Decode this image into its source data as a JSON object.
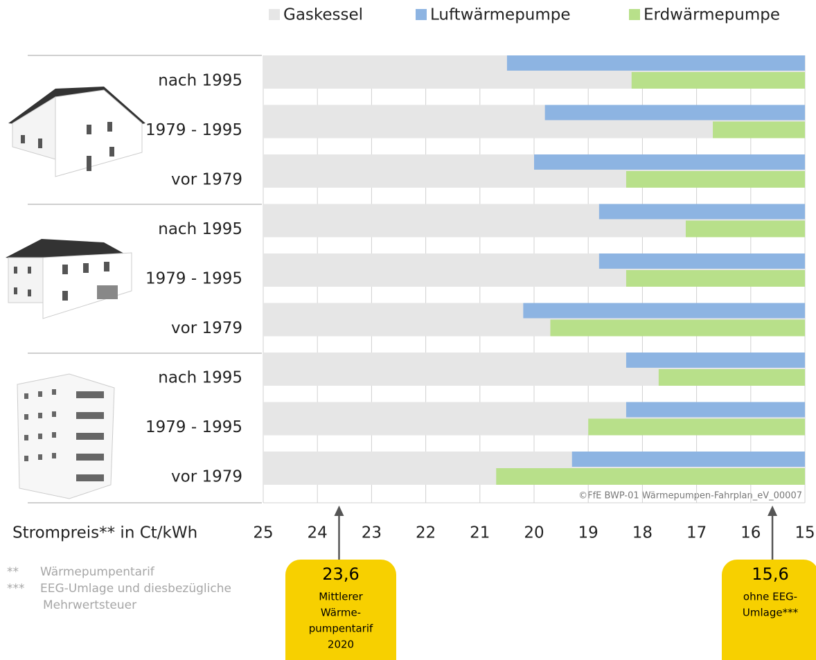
{
  "chart_data": {
    "type": "bar",
    "orientation": "horizontal",
    "categories": [
      "nach 1995",
      "1979 - 1995",
      "vor 1979",
      "nach 1995",
      "1979 - 1995",
      "vor 1979",
      "nach 1995",
      "1979 - 1995",
      "vor 1979"
    ],
    "series": [
      {
        "name": "Gaskessel",
        "color": "#e6e6e6",
        "values": [
          25,
          25,
          25,
          25,
          25,
          25,
          25,
          25,
          25
        ]
      },
      {
        "name": "Luftwärmepumpe",
        "color": "#8db4e2",
        "values": [
          20.5,
          19.8,
          20.0,
          18.8,
          18.8,
          20.2,
          18.3,
          18.3,
          19.3
        ]
      },
      {
        "name": "Erdwärmepumpe",
        "color": "#b8e08a",
        "values": [
          18.2,
          16.7,
          18.3,
          17.2,
          18.3,
          19.7,
          17.7,
          19.0,
          20.7
        ]
      }
    ],
    "xlabel": "Strompreis** in Ct/kWh",
    "xlim": [
      25,
      15
    ],
    "xticks": [
      25,
      24,
      23,
      22,
      21,
      20,
      19,
      18,
      17,
      16,
      15
    ],
    "grid": true,
    "legend": "top",
    "credit": "©FfE BWP-01 Wärmepumpen-Fahrplan_eV_00007",
    "annotations": [
      {
        "value": 23.6,
        "label": "23,6",
        "text": [
          "Mittlerer",
          "Wärme-",
          "pumpentarif",
          "2020"
        ]
      },
      {
        "value": 15.6,
        "label": "15,6",
        "text": [
          "ohne EEG-",
          "Umlage***"
        ]
      }
    ],
    "footnotes": [
      {
        "mark": "**",
        "lines": [
          "Wärmepumpentarif"
        ]
      },
      {
        "mark": "***",
        "lines": [
          "EEG-Umlage und diesbezügliche",
          "Mehrwertsteuer"
        ]
      }
    ]
  }
}
